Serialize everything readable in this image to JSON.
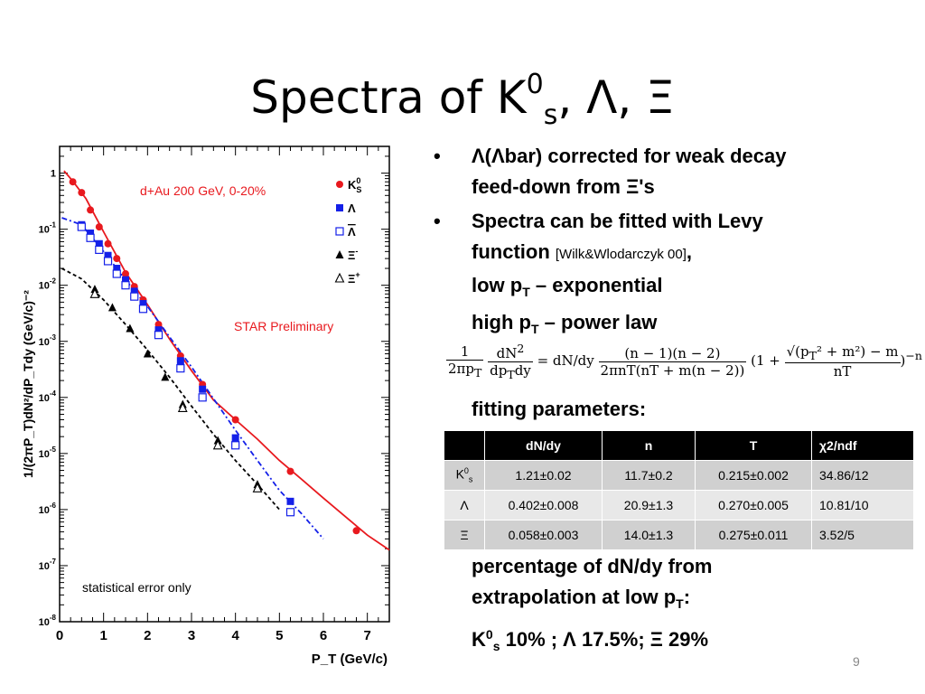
{
  "title": {
    "main": "Spectra of K",
    "sup": "0",
    "sub": "s",
    "rest": ", Λ, Ξ"
  },
  "bullets": [
    {
      "line1": "Λ(Λbar) corrected for weak decay",
      "line2": "feed-down from Ξ's"
    },
    {
      "line1": "Spectra can be fitted with Levy",
      "line2a": "function ",
      "ref": "[Wilk&Wlodarczyk 00]",
      "line2b": ",",
      "line3a": "low p",
      "line3sub": "T",
      "line3b": " – exponential",
      "line4a": "high p",
      "line4sub": "T",
      "line4b": " – power law"
    }
  ],
  "formula": {
    "f1_num": "1",
    "f1_den": "2πp",
    "f1_den_sub": "T",
    "f2_num": "dN",
    "f2_num_sup": "2",
    "f2_den": "dp",
    "f2_den_sub": "T",
    "f2_den_rest": "dy",
    "eq": "= dN/dy",
    "f3_num": "(n − 1)(n − 2)",
    "f3_den": "2πnT(nT + m(n − 2))",
    "paren_open": "(1 +",
    "f4_num": "√(p",
    "f4_num_sub": "T",
    "f4_num_rest": "² + m²) − m",
    "f4_den": "nT",
    "paren_close": ")",
    "exp": "−n"
  },
  "fit_label": "fitting parameters:",
  "table": {
    "headers": [
      "",
      "dN/dy",
      "n",
      "T",
      "χ2/ndf"
    ],
    "rows": [
      {
        "particle": "K",
        "particle_sup": "0",
        "particle_sub": "s",
        "dndy": "1.21±0.02",
        "n": "11.7±0.2",
        "T": "0.215±0.002",
        "chi2": "34.86/12"
      },
      {
        "particle": "Λ",
        "dndy": "0.402±0.008",
        "n": "20.9±1.3",
        "T": "0.270±0.005",
        "chi2": "10.81/10"
      },
      {
        "particle": "Ξ",
        "dndy": "0.058±0.003",
        "n": "14.0±1.3",
        "T": "0.275±0.011",
        "chi2": "3.52/5"
      }
    ]
  },
  "pct": {
    "line1": "percentage of dN/dy from",
    "line2a": "extrapolation at low p",
    "line2sub": "T",
    "line2b": ":",
    "line3a": "K",
    "line3sup": "0",
    "line3sub": "s",
    "line3b": "  10% ; Λ  17.5%; Ξ  29%"
  },
  "page_number": "9",
  "chart_data": {
    "type": "scatter",
    "ylabel": "1/(2πP_T)dN²/dP_Tdy (GeV/c)⁻²",
    "xlabel": "P_T (GeV/c)",
    "xlim": [
      0,
      7.5
    ],
    "ylim": [
      1e-08,
      3
    ],
    "log_y": true,
    "x_ticks": [
      "0",
      "1",
      "2",
      "3",
      "4",
      "5",
      "6",
      "7"
    ],
    "y_ticks": [
      {
        "base": "1",
        "exp": ""
      },
      {
        "base": "10",
        "exp": "-1"
      },
      {
        "base": "10",
        "exp": "-2"
      },
      {
        "base": "10",
        "exp": "-3"
      },
      {
        "base": "10",
        "exp": "-4"
      },
      {
        "base": "10",
        "exp": "-5"
      },
      {
        "base": "10",
        "exp": "-6"
      },
      {
        "base": "10",
        "exp": "-7"
      },
      {
        "base": "10",
        "exp": "-8"
      }
    ],
    "annotations": {
      "system": "d+Au 200 GeV, 0-20%",
      "preliminary": "STAR Preliminary",
      "error_note": "statistical error only"
    },
    "legend_position": "top-right",
    "series": [
      {
        "name": "K0S",
        "legend_main": "K",
        "legend_sup": "0",
        "legend_sub": "S",
        "marker": "filled-circle",
        "color": "#e8191e",
        "x": [
          0.3,
          0.5,
          0.7,
          0.9,
          1.1,
          1.3,
          1.5,
          1.7,
          1.9,
          2.25,
          2.75,
          3.25,
          4.0,
          5.25,
          6.75
        ],
        "y": [
          0.7,
          0.45,
          0.22,
          0.11,
          0.055,
          0.03,
          0.016,
          0.0095,
          0.0055,
          0.002,
          0.00055,
          0.00017,
          4e-05,
          4.8e-06,
          4.2e-07
        ]
      },
      {
        "name": "Λ",
        "legend_main": "Λ",
        "marker": "filled-square",
        "color": "#1420e8",
        "x": [
          0.5,
          0.7,
          0.9,
          1.1,
          1.3,
          1.5,
          1.7,
          1.9,
          2.25,
          2.75,
          3.25,
          4.0,
          5.25
        ],
        "y": [
          0.12,
          0.085,
          0.055,
          0.034,
          0.02,
          0.0125,
          0.0078,
          0.0047,
          0.0016,
          0.00045,
          0.00014,
          1.9e-05,
          1.4e-06
        ]
      },
      {
        "name": "Λbar",
        "legend_main": "Λ",
        "legend_overline": true,
        "marker": "open-square",
        "color": "#1420e8",
        "x": [
          0.5,
          0.7,
          0.9,
          1.1,
          1.3,
          1.5,
          1.7,
          1.9,
          2.25,
          2.75,
          3.25,
          4.0,
          5.25
        ],
        "y": [
          0.11,
          0.07,
          0.043,
          0.027,
          0.016,
          0.01,
          0.0063,
          0.0038,
          0.0013,
          0.00033,
          0.0001,
          1.4e-05,
          9e-07
        ]
      },
      {
        "name": "Ξ-",
        "legend_main": "Ξ",
        "legend_sup": "-",
        "marker": "filled-triangle",
        "color": "#000000",
        "x": [
          0.8,
          1.2,
          1.6,
          2.0,
          2.4,
          2.8,
          3.6,
          4.5
        ],
        "y": [
          0.0085,
          0.004,
          0.0017,
          0.0006,
          0.00023,
          7.5e-05,
          1.7e-05,
          2.8e-06
        ]
      },
      {
        "name": "Ξ+",
        "legend_main": "Ξ",
        "legend_sup": "+",
        "marker": "open-triangle",
        "color": "#000000",
        "x": [
          0.8,
          2.8,
          3.6,
          4.5
        ],
        "y": [
          0.007,
          6.5e-05,
          1.4e-05,
          2.4e-06
        ]
      }
    ],
    "fits": [
      {
        "series": "K0S",
        "style": "solid",
        "color": "#e8191e",
        "x": [
          0.1,
          0.3,
          0.6,
          1.0,
          1.5,
          2.0,
          2.5,
          3.0,
          3.5,
          4.0,
          4.5,
          5.0,
          5.5,
          6.0,
          6.5,
          7.0,
          7.5
        ],
        "y": [
          1.1,
          0.72,
          0.35,
          0.09,
          0.017,
          0.0045,
          0.0011,
          0.0003,
          9e-05,
          4e-05,
          1.8e-05,
          7.5e-06,
          3.5e-06,
          1.6e-06,
          7.5e-07,
          3.5e-07,
          1.9e-07
        ]
      },
      {
        "series": "Λ",
        "style": "dashdot",
        "color": "#1420e8",
        "x": [
          0.05,
          0.5,
          1.0,
          1.5,
          2.0,
          2.5,
          3.0,
          3.5,
          4.0,
          4.5,
          5.0,
          5.5,
          6.0
        ],
        "y": [
          0.16,
          0.12,
          0.04,
          0.0125,
          0.0042,
          0.0012,
          0.00035,
          9.5e-05,
          2.6e-05,
          7.5e-06,
          2.2e-06,
          8.5e-07,
          3e-07
        ]
      },
      {
        "series": "Ξ",
        "style": "dashed",
        "color": "#000000",
        "x": [
          0.05,
          0.5,
          1.0,
          1.5,
          2.0,
          2.5,
          3.0,
          3.5,
          4.0,
          4.5,
          5.0
        ],
        "y": [
          0.02,
          0.013,
          0.0055,
          0.002,
          0.0007,
          0.00023,
          7e-05,
          2.2e-05,
          7.5e-06,
          2.8e-06,
          1e-06
        ]
      }
    ]
  }
}
